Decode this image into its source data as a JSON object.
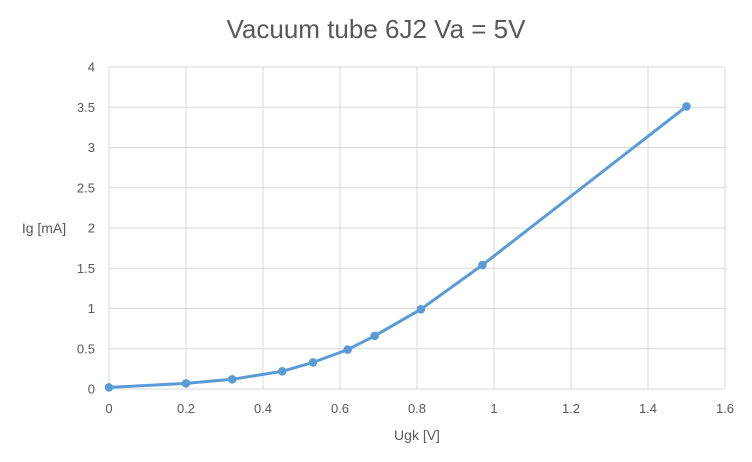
{
  "chart_data": {
    "type": "scatter",
    "title": "Vacuum tube 6J2 Va = 5V",
    "xlabel": "Ugk [V]",
    "ylabel": "Ig [mA]",
    "xlim": [
      0,
      1.6
    ],
    "ylim": [
      0,
      4
    ],
    "x_ticks": [
      "0",
      "0.2",
      "0.4",
      "0.6",
      "0.8",
      "1",
      "1.2",
      "1.4",
      "1.6"
    ],
    "y_ticks": [
      "0",
      "0.5",
      "1",
      "1.5",
      "2",
      "2.5",
      "3",
      "3.5",
      "4"
    ],
    "grid": true,
    "legend": "none",
    "series": [
      {
        "color": "#5b9bd5",
        "style": "line-with-markers",
        "x": [
          0,
          0.2,
          0.32,
          0.45,
          0.53,
          0.62,
          0.69,
          0.81,
          0.97,
          1.5
        ],
        "y": [
          0.02,
          0.07,
          0.12,
          0.22,
          0.33,
          0.49,
          0.66,
          0.99,
          1.54,
          3.51
        ]
      }
    ],
    "colors": {
      "grid": "#d9d9d9",
      "text": "#595959",
      "series": "#5b9bd5"
    }
  }
}
